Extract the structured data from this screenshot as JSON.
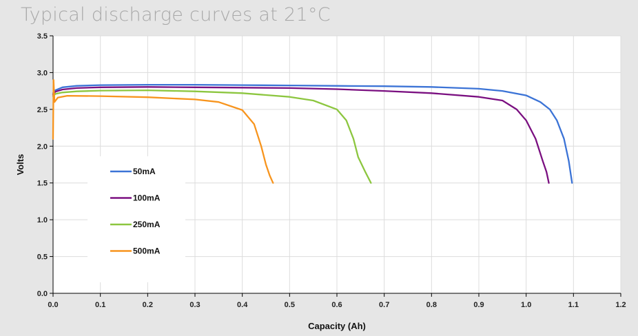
{
  "chart_data": {
    "type": "line",
    "title": "Typical discharge curves at 21°C",
    "xlabel": "Capacity (Ah)",
    "ylabel": "Volts",
    "xlim": [
      0,
      1.2
    ],
    "ylim": [
      0,
      3.5
    ],
    "xticks": [
      "0.0",
      "0.1",
      "0.2",
      "0.3",
      "0.4",
      "0.5",
      "0.6",
      "0.7",
      "0.8",
      "0.9",
      "1.0",
      "1.1",
      "1.2"
    ],
    "yticks": [
      "0.0",
      "0.5",
      "1.0",
      "1.5",
      "2.0",
      "2.5",
      "3.0",
      "3.5"
    ],
    "grid": true,
    "legend_position": "left",
    "series": [
      {
        "name": "50mA",
        "color": "#3b73d6",
        "points": [
          [
            0,
            2.72
          ],
          [
            0.005,
            2.76
          ],
          [
            0.02,
            2.8
          ],
          [
            0.05,
            2.82
          ],
          [
            0.1,
            2.83
          ],
          [
            0.2,
            2.835
          ],
          [
            0.3,
            2.835
          ],
          [
            0.4,
            2.83
          ],
          [
            0.5,
            2.825
          ],
          [
            0.6,
            2.82
          ],
          [
            0.7,
            2.815
          ],
          [
            0.8,
            2.805
          ],
          [
            0.9,
            2.78
          ],
          [
            0.95,
            2.75
          ],
          [
            1.0,
            2.69
          ],
          [
            1.03,
            2.6
          ],
          [
            1.05,
            2.5
          ],
          [
            1.065,
            2.35
          ],
          [
            1.08,
            2.1
          ],
          [
            1.09,
            1.8
          ],
          [
            1.097,
            1.5
          ]
        ]
      },
      {
        "name": "100mA",
        "color": "#7a0f80",
        "points": [
          [
            0,
            2.7
          ],
          [
            0.005,
            2.74
          ],
          [
            0.02,
            2.77
          ],
          [
            0.05,
            2.79
          ],
          [
            0.1,
            2.8
          ],
          [
            0.2,
            2.805
          ],
          [
            0.3,
            2.8
          ],
          [
            0.4,
            2.795
          ],
          [
            0.5,
            2.79
          ],
          [
            0.6,
            2.775
          ],
          [
            0.7,
            2.75
          ],
          [
            0.8,
            2.72
          ],
          [
            0.9,
            2.67
          ],
          [
            0.95,
            2.62
          ],
          [
            0.98,
            2.5
          ],
          [
            1.0,
            2.35
          ],
          [
            1.02,
            2.1
          ],
          [
            1.035,
            1.8
          ],
          [
            1.043,
            1.65
          ],
          [
            1.048,
            1.5
          ]
        ]
      },
      {
        "name": "250mA",
        "color": "#8cc63f",
        "points": [
          [
            0,
            2.68
          ],
          [
            0.005,
            2.71
          ],
          [
            0.02,
            2.73
          ],
          [
            0.05,
            2.745
          ],
          [
            0.1,
            2.755
          ],
          [
            0.2,
            2.76
          ],
          [
            0.3,
            2.745
          ],
          [
            0.4,
            2.72
          ],
          [
            0.5,
            2.67
          ],
          [
            0.55,
            2.62
          ],
          [
            0.6,
            2.5
          ],
          [
            0.62,
            2.35
          ],
          [
            0.635,
            2.1
          ],
          [
            0.645,
            1.85
          ],
          [
            0.66,
            1.65
          ],
          [
            0.672,
            1.5
          ]
        ]
      },
      {
        "name": "500mA",
        "color": "#f7941d",
        "points": [
          [
            0,
            2.1
          ],
          [
            0.001,
            2.9
          ],
          [
            0.003,
            2.6
          ],
          [
            0.01,
            2.66
          ],
          [
            0.03,
            2.685
          ],
          [
            0.1,
            2.68
          ],
          [
            0.2,
            2.665
          ],
          [
            0.3,
            2.635
          ],
          [
            0.35,
            2.6
          ],
          [
            0.4,
            2.49
          ],
          [
            0.425,
            2.3
          ],
          [
            0.44,
            2.0
          ],
          [
            0.45,
            1.75
          ],
          [
            0.458,
            1.6
          ],
          [
            0.465,
            1.5
          ]
        ]
      }
    ]
  }
}
